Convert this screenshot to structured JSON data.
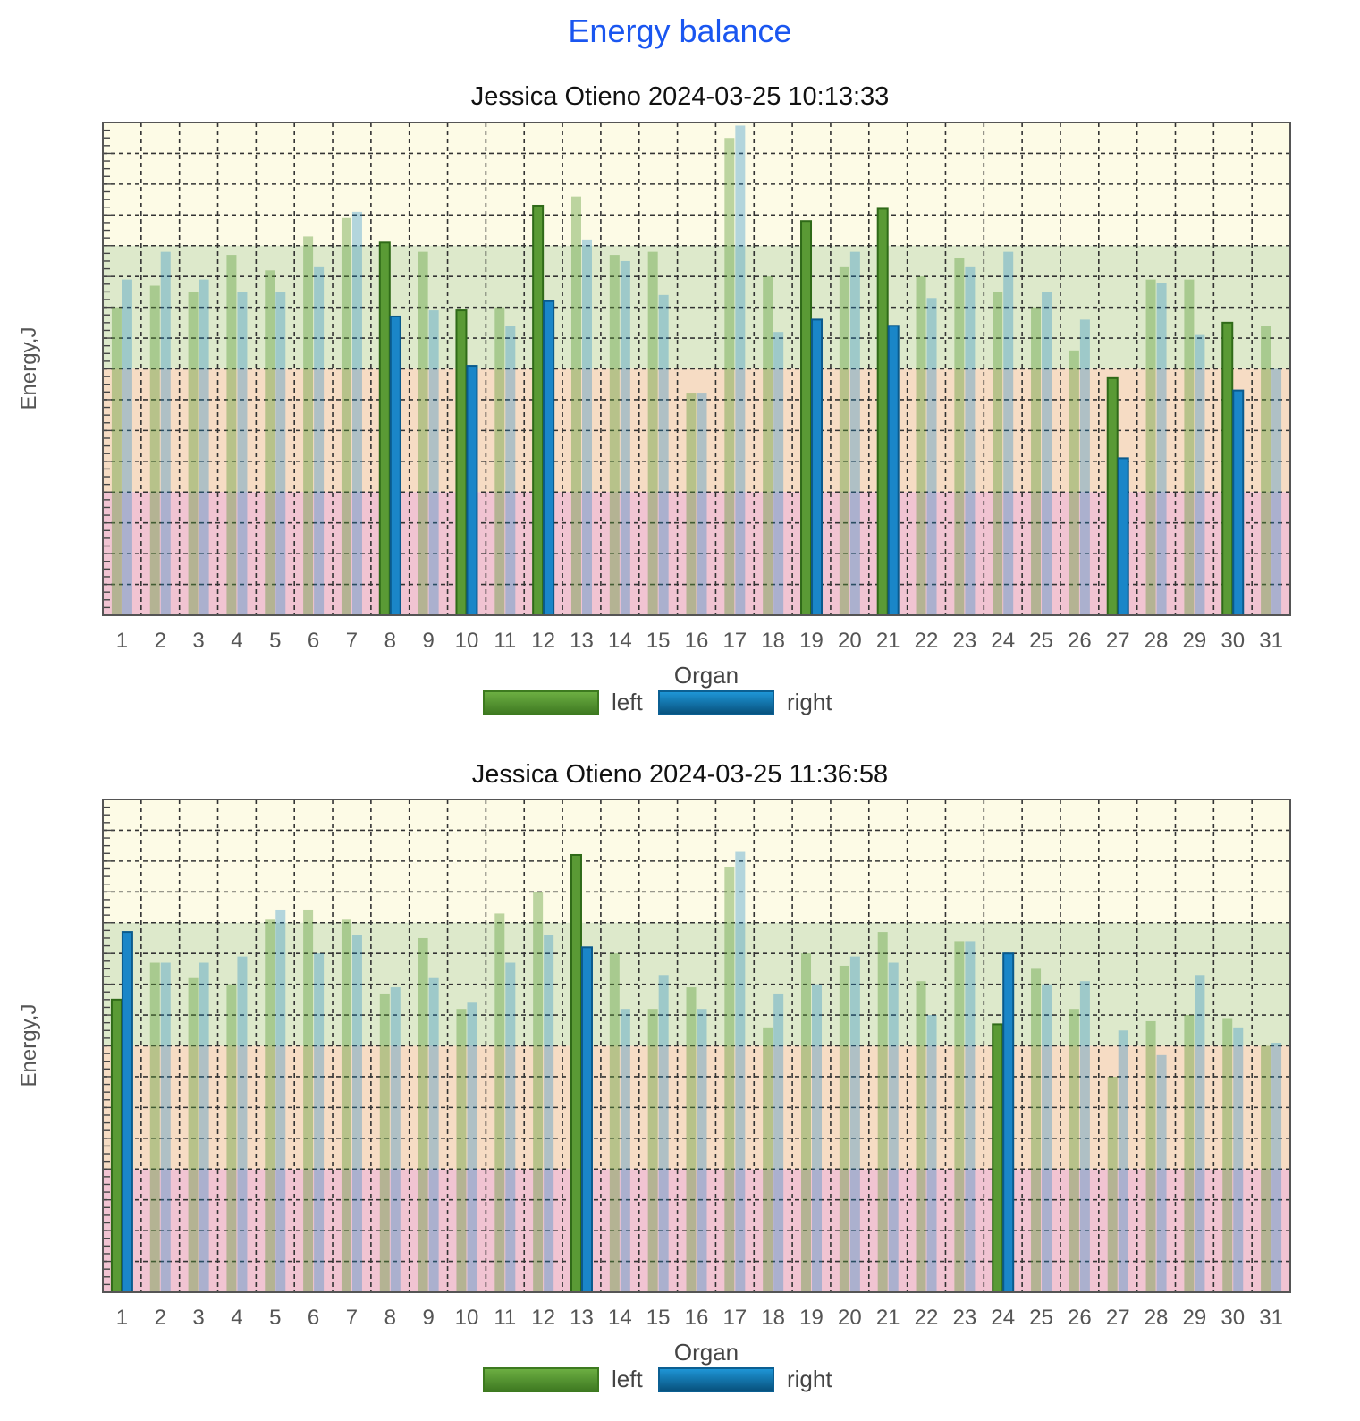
{
  "title": "Energy balance",
  "legend": {
    "left": "left",
    "right": "right"
  },
  "colors": {
    "left": "#5a9a35",
    "right": "#1a86c8",
    "zone_top": "#fdfbe6",
    "zone_green": "#dde9cb",
    "zone_orange": "#f6dcc4",
    "zone_pink": "#f1c4d2"
  },
  "chart_data": [
    {
      "type": "bar",
      "title": "Jessica Otieno 2024-03-25 10:13:33",
      "xlabel": "Organ",
      "ylabel": "Energy,J",
      "ylim": [
        0,
        160
      ],
      "zones": [
        40,
        80,
        120
      ],
      "categories": [
        "1",
        "2",
        "3",
        "4",
        "5",
        "6",
        "7",
        "8",
        "9",
        "10",
        "11",
        "12",
        "13",
        "14",
        "15",
        "16",
        "17",
        "18",
        "19",
        "20",
        "21",
        "22",
        "23",
        "24",
        "25",
        "26",
        "27",
        "28",
        "29",
        "30",
        "31"
      ],
      "series": [
        {
          "name": "left",
          "values": [
            100,
            107,
            105,
            117,
            112,
            123,
            129,
            121,
            118,
            99,
            100,
            133,
            136,
            117,
            118,
            72,
            155,
            110,
            128,
            113,
            132,
            110,
            116,
            105,
            100,
            86,
            77,
            109,
            109,
            95,
            94
          ]
        },
        {
          "name": "right",
          "values": [
            109,
            118,
            109,
            105,
            105,
            113,
            131,
            97,
            99,
            81,
            94,
            102,
            122,
            115,
            104,
            72,
            159,
            92,
            96,
            118,
            94,
            103,
            113,
            118,
            105,
            96,
            51,
            108,
            91,
            73,
            80
          ]
        }
      ],
      "highlighted": [
        "8",
        "10",
        "12",
        "19",
        "21",
        "27",
        "30"
      ]
    },
    {
      "type": "bar",
      "title": "Jessica Otieno 2024-03-25 11:36:58",
      "xlabel": "Organ",
      "ylabel": "Energy,J",
      "ylim": [
        0,
        160
      ],
      "zones": [
        40,
        80,
        120
      ],
      "categories": [
        "1",
        "2",
        "3",
        "4",
        "5",
        "6",
        "7",
        "8",
        "9",
        "10",
        "11",
        "12",
        "13",
        "14",
        "15",
        "16",
        "17",
        "18",
        "19",
        "20",
        "21",
        "22",
        "23",
        "24",
        "25",
        "26",
        "27",
        "28",
        "29",
        "30",
        "31"
      ],
      "series": [
        {
          "name": "left",
          "values": [
            95,
            107,
            102,
            100,
            121,
            124,
            121,
            97,
            115,
            92,
            123,
            130,
            142,
            110,
            92,
            99,
            138,
            86,
            110,
            106,
            117,
            101,
            114,
            87,
            105,
            92,
            70,
            88,
            90,
            89,
            80
          ]
        },
        {
          "name": "right",
          "values": [
            117,
            107,
            107,
            109,
            124,
            110,
            116,
            99,
            102,
            94,
            107,
            116,
            112,
            92,
            103,
            92,
            143,
            97,
            100,
            109,
            107,
            90,
            114,
            110,
            100,
            101,
            85,
            77,
            103,
            86,
            81
          ]
        }
      ],
      "highlighted": [
        "1",
        "13",
        "24"
      ]
    }
  ]
}
